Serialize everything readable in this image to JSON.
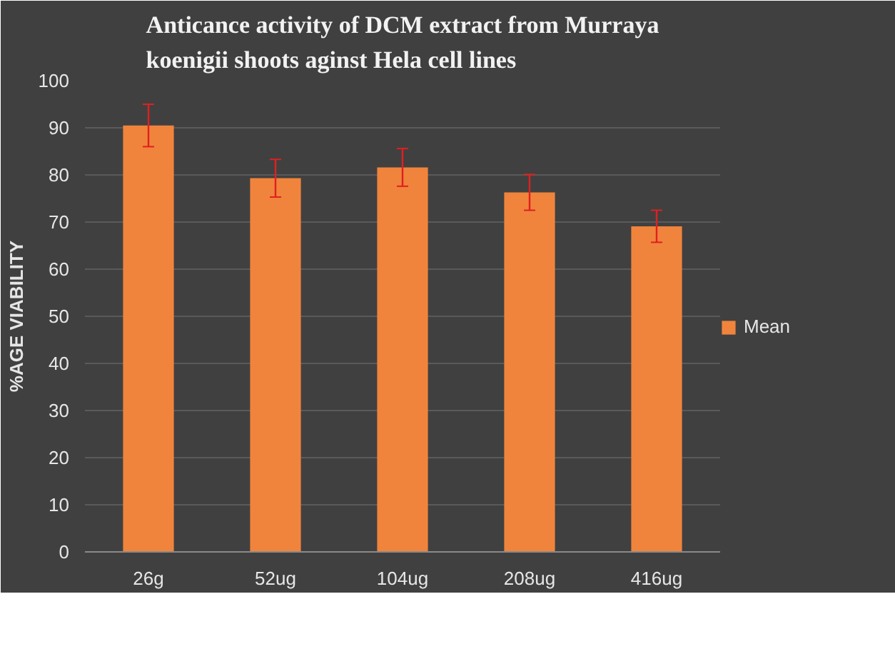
{
  "chart_data": {
    "type": "bar",
    "title": "Anticance activity of DCM extract from Murraya koenigii shoots aginst Hela cell lines",
    "ylabel": "%AGE VIABILITY",
    "categories": [
      "26g",
      "52ug",
      "104ug",
      "208ug",
      "416ug"
    ],
    "series": [
      {
        "name": "Mean",
        "color": "#f0843c",
        "values": [
          90.5,
          79.3,
          81.6,
          76.3,
          69.1
        ],
        "errors": [
          4.5,
          4,
          4,
          3.8,
          3.4
        ]
      }
    ],
    "ylim": [
      0,
      100
    ],
    "yticks": [
      0,
      10,
      20,
      30,
      40,
      50,
      60,
      70,
      80,
      90,
      100
    ],
    "grid": "y",
    "legend": "right"
  }
}
